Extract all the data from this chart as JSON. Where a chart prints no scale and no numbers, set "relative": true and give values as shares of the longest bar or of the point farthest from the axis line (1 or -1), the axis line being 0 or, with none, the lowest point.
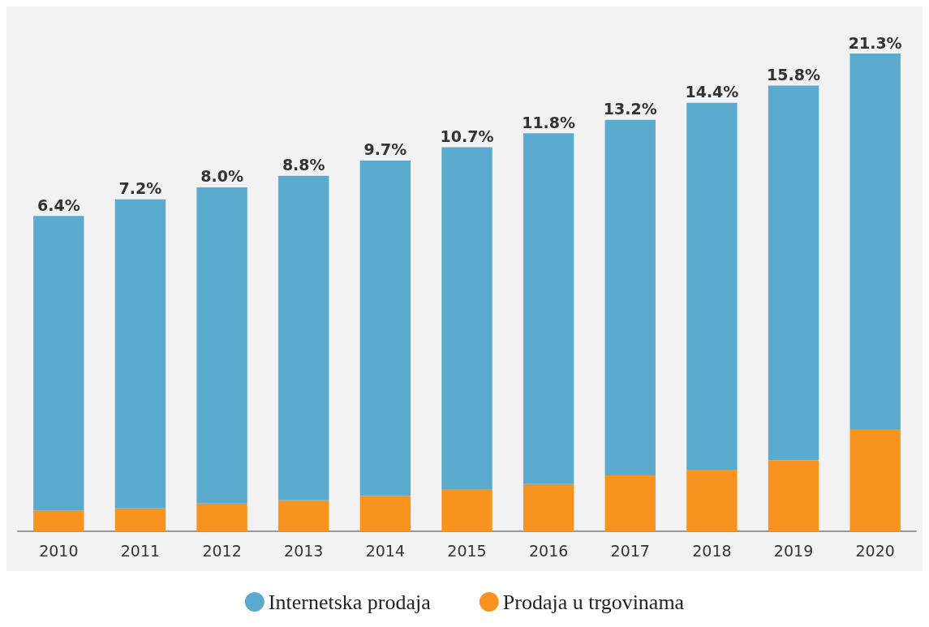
{
  "chart_data": {
    "type": "bar",
    "stacked": true,
    "relative": true,
    "categories": [
      "2010",
      "2011",
      "2012",
      "2013",
      "2014",
      "2015",
      "2016",
      "2017",
      "2018",
      "2019",
      "2020"
    ],
    "series": [
      {
        "name": "Prodaja u trgovinama",
        "color": "#f7931e",
        "values": [
          0.043,
          0.048,
          0.058,
          0.065,
          0.074,
          0.087,
          0.099,
          0.117,
          0.129,
          0.149,
          0.214
        ]
      },
      {
        "name": "Internetska prodaja",
        "color": "#5aabcd",
        "values": [
          0.617,
          0.647,
          0.662,
          0.679,
          0.702,
          0.717,
          0.734,
          0.744,
          0.768,
          0.784,
          0.786
        ]
      }
    ],
    "annotations": [
      {
        "text": "6.4%",
        "x": "2010",
        "y": 0.66
      },
      {
        "text": "7.2%",
        "x": "2011",
        "y": 0.695
      },
      {
        "text": "8.0%",
        "x": "2012",
        "y": 0.72
      },
      {
        "text": "8.8%",
        "x": "2013",
        "y": 0.744
      },
      {
        "text": "9.7%",
        "x": "2014",
        "y": 0.776
      },
      {
        "text": "10.7%",
        "x": "2015",
        "y": 0.804
      },
      {
        "text": "11.8%",
        "x": "2016",
        "y": 0.833
      },
      {
        "text": "13.2%",
        "x": "2017",
        "y": 0.861
      },
      {
        "text": "14.4%",
        "x": "2018",
        "y": 0.897
      },
      {
        "text": "15.8%",
        "x": "2019",
        "y": 0.933
      },
      {
        "text": "21.3%",
        "x": "2020",
        "y": 1.0
      }
    ],
    "legend": "bottom"
  }
}
